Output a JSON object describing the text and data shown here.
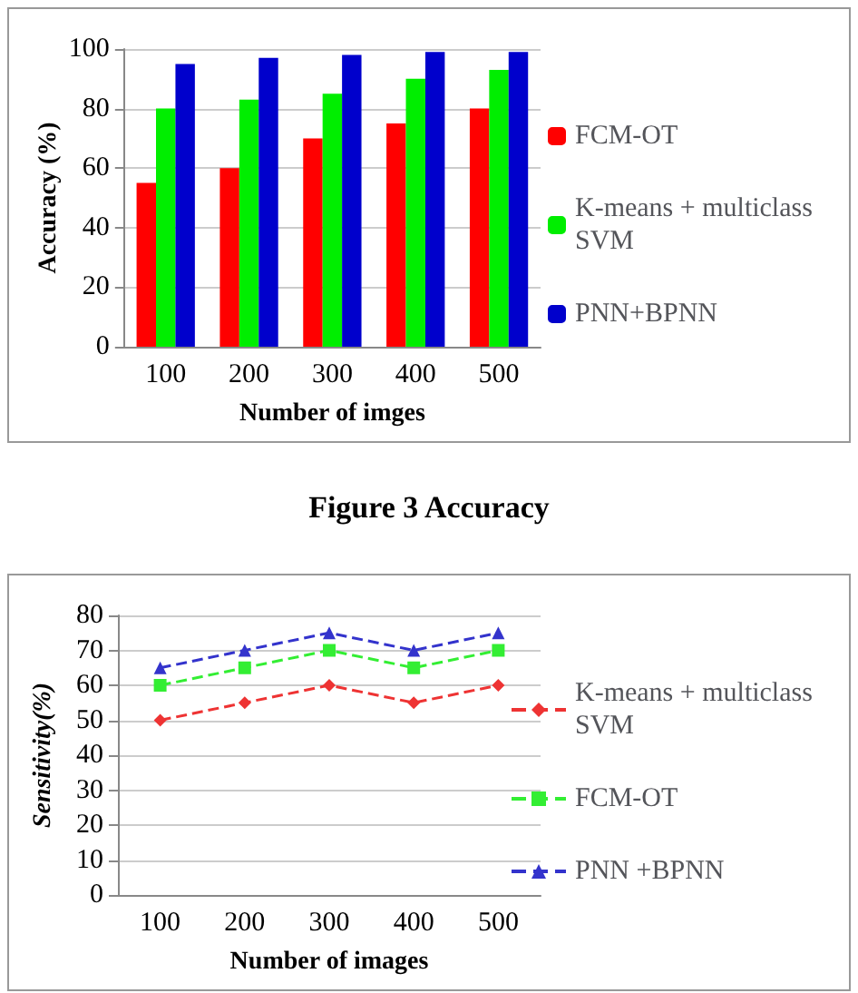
{
  "chart_data": [
    {
      "type": "bar",
      "xlabel": "Number of imges",
      "ylabel": "Accuracy (%)",
      "categories": [
        "100",
        "200",
        "300",
        "400",
        "500"
      ],
      "series": [
        {
          "name": "FCM-OT",
          "color": "#ff0000",
          "values": [
            55,
            60,
            70,
            75,
            80
          ]
        },
        {
          "name": "K-means + multiclass SVM",
          "color": "#00ee00",
          "values": [
            80,
            83,
            85,
            90,
            93
          ]
        },
        {
          "name": "PNN+BPNN",
          "color": "#0000cc",
          "values": [
            95,
            97,
            98,
            99,
            99
          ]
        }
      ],
      "ylim": [
        0,
        100
      ],
      "yticks": [
        0,
        20,
        40,
        60,
        80,
        100
      ],
      "grid": "y",
      "legend": "right",
      "annotations": [
        "Figure 3 Accuracy"
      ]
    },
    {
      "type": "line",
      "xlabel": "Number of images",
      "ylabel": "Sensitivity(%)",
      "categories": [
        "100",
        "200",
        "300",
        "400",
        "500"
      ],
      "series": [
        {
          "name": "K-means + multiclass SVM",
          "color": "#ee3333",
          "values": [
            50,
            55,
            60,
            55,
            60
          ],
          "marker": "diamond"
        },
        {
          "name": "FCM-OT",
          "color": "#33ee33",
          "values": [
            60,
            65,
            70,
            65,
            70
          ],
          "marker": "square"
        },
        {
          "name": "PNN +BPNN",
          "color": "#3333cc",
          "values": [
            65,
            70,
            75,
            70,
            75
          ],
          "marker": "triangle"
        }
      ],
      "ylim": [
        0,
        80
      ],
      "yticks": [
        0,
        10,
        20,
        30,
        40,
        50,
        60,
        70,
        80
      ],
      "grid": "y",
      "legend": "right",
      "line_style": "dashed"
    }
  ]
}
